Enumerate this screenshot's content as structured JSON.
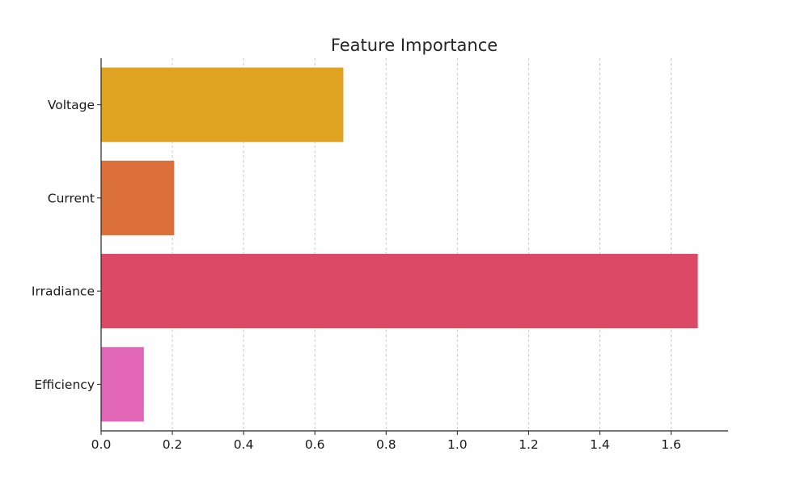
{
  "chart_data": {
    "type": "bar",
    "orientation": "horizontal",
    "title": "Feature Importance",
    "xlabel": "",
    "ylabel": "",
    "categories": [
      "Voltage",
      "Current",
      "Irradiance",
      "Efficiency"
    ],
    "values": [
      0.68,
      0.205,
      1.675,
      0.12
    ],
    "colors": [
      "#DFA321",
      "#DC703B",
      "#DB4966",
      "#E166B8"
    ],
    "xlim": [
      0.0,
      1.76
    ],
    "xticks": [
      0.0,
      0.2,
      0.4,
      0.6,
      0.8,
      1.0,
      1.2,
      1.4,
      1.6
    ],
    "xtick_labels": [
      "0.0",
      "0.2",
      "0.4",
      "0.6",
      "0.8",
      "1.0",
      "1.2",
      "1.4",
      "1.6"
    ],
    "grid": "vertical-dashed",
    "legend": "none"
  }
}
